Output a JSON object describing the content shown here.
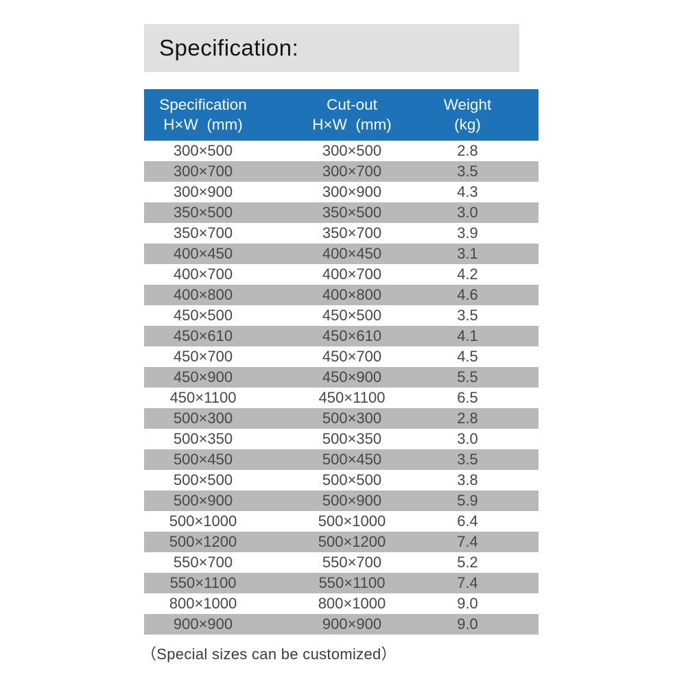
{
  "page_title": "Specification:",
  "colors": {
    "header_bg": "#1d72b8",
    "header_text": "#fafdff",
    "alt_row_bg": "#b9b9b9",
    "title_box_bg": "#e0e0e0",
    "body_text": "#474747"
  },
  "table": {
    "columns": [
      {
        "line1": "Specification",
        "line2": "H×W  (mm)"
      },
      {
        "line1": "Cut-out",
        "line2": "H×W  (mm)"
      },
      {
        "line1": "Weight",
        "line2": "(kg)"
      }
    ],
    "rows": [
      [
        "300×500",
        "300×500",
        "2.8"
      ],
      [
        "300×700",
        "300×700",
        "3.5"
      ],
      [
        "300×900",
        "300×900",
        "4.3"
      ],
      [
        "350×500",
        "350×500",
        "3.0"
      ],
      [
        "350×700",
        "350×700",
        "3.9"
      ],
      [
        "400×450",
        "400×450",
        "3.1"
      ],
      [
        "400×700",
        "400×700",
        "4.2"
      ],
      [
        "400×800",
        "400×800",
        "4.6"
      ],
      [
        "450×500",
        "450×500",
        "3.5"
      ],
      [
        "450×610",
        "450×610",
        "4.1"
      ],
      [
        "450×700",
        "450×700",
        "4.5"
      ],
      [
        "450×900",
        "450×900",
        "5.5"
      ],
      [
        "450×1100",
        "450×1100",
        "6.5"
      ],
      [
        "500×300",
        "500×300",
        "2.8"
      ],
      [
        "500×350",
        "500×350",
        "3.0"
      ],
      [
        "500×450",
        "500×450",
        "3.5"
      ],
      [
        "500×500",
        "500×500",
        "3.8"
      ],
      [
        "500×900",
        "500×900",
        "5.9"
      ],
      [
        "500×1000",
        "500×1000",
        "6.4"
      ],
      [
        "500×1200",
        "500×1200",
        "7.4"
      ],
      [
        "550×700",
        "550×700",
        "5.2"
      ],
      [
        "550×1100",
        "550×1100",
        "7.4"
      ],
      [
        "800×1000",
        "800×1000",
        "9.0"
      ],
      [
        "900×900",
        "900×900",
        "9.0"
      ]
    ]
  },
  "footer_note": "（Special sizes can be customized）"
}
